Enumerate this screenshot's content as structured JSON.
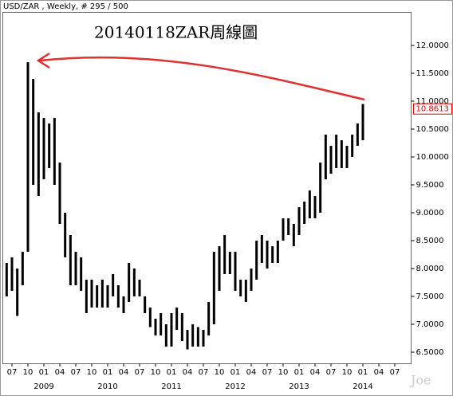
{
  "chart_data": {
    "type": "ohlc",
    "title": "USD/ZAR , Weekly, # 295 / 500",
    "annotation": "20140118ZAR周線圖",
    "watermark": "Joe",
    "color": "#000000",
    "last_price": 10.8613,
    "last_price_color": "#e00000",
    "x": [
      "2008-06",
      "2008-07",
      "2008-08",
      "2008-09",
      "2008-10",
      "2008-11",
      "2008-12",
      "2009-01",
      "2009-02",
      "2009-03",
      "2009-04",
      "2009-05",
      "2009-06",
      "2009-07",
      "2009-08",
      "2009-09",
      "2009-10",
      "2009-11",
      "2009-12",
      "2010-01",
      "2010-02",
      "2010-03",
      "2010-04",
      "2010-05",
      "2010-06",
      "2010-07",
      "2010-08",
      "2010-09",
      "2010-10",
      "2010-11",
      "2010-12",
      "2011-01",
      "2011-02",
      "2011-03",
      "2011-04",
      "2011-05",
      "2011-06",
      "2011-07",
      "2011-08",
      "2011-09",
      "2011-10",
      "2011-11",
      "2011-12",
      "2012-01",
      "2012-02",
      "2012-03",
      "2012-04",
      "2012-05",
      "2012-06",
      "2012-07",
      "2012-08",
      "2012-09",
      "2012-10",
      "2012-11",
      "2012-12",
      "2013-01",
      "2013-02",
      "2013-03",
      "2013-04",
      "2013-05",
      "2013-06",
      "2013-07",
      "2013-08",
      "2013-09",
      "2013-10",
      "2013-11",
      "2013-12",
      "2014-01"
    ],
    "high": [
      8.1,
      8.2,
      8.0,
      8.3,
      11.7,
      11.4,
      10.8,
      10.7,
      10.6,
      10.7,
      9.9,
      9.0,
      8.6,
      8.3,
      8.2,
      7.8,
      7.8,
      7.7,
      7.8,
      7.7,
      7.9,
      7.7,
      7.5,
      8.1,
      8.0,
      7.8,
      7.5,
      7.3,
      7.1,
      7.2,
      7.0,
      7.2,
      7.3,
      7.2,
      6.9,
      7.0,
      6.95,
      6.9,
      7.4,
      8.3,
      8.4,
      8.6,
      8.3,
      8.3,
      7.8,
      7.8,
      8.0,
      8.5,
      8.6,
      8.5,
      8.4,
      8.5,
      8.9,
      8.9,
      8.8,
      9.1,
      9.2,
      9.4,
      9.3,
      9.9,
      10.4,
      10.2,
      10.4,
      10.3,
      10.2,
      10.4,
      10.6,
      10.95
    ],
    "low": [
      7.5,
      7.6,
      7.15,
      7.7,
      8.3,
      9.5,
      9.3,
      9.6,
      9.8,
      9.5,
      8.8,
      8.2,
      7.7,
      7.7,
      7.6,
      7.2,
      7.3,
      7.3,
      7.3,
      7.3,
      7.5,
      7.3,
      7.2,
      7.4,
      7.5,
      7.5,
      7.2,
      6.95,
      6.8,
      6.8,
      6.6,
      6.6,
      6.9,
      6.7,
      6.55,
      6.6,
      6.6,
      6.6,
      6.8,
      7.0,
      7.6,
      7.9,
      7.9,
      7.6,
      7.5,
      7.4,
      7.6,
      7.8,
      8.1,
      8.0,
      8.1,
      8.1,
      8.5,
      8.6,
      8.4,
      8.6,
      8.8,
      8.9,
      8.9,
      9.0,
      9.6,
      9.7,
      9.8,
      9.8,
      9.8,
      10.0,
      10.2,
      10.3
    ],
    "ylim": [
      6.3,
      12.55
    ],
    "yticks": [
      {
        "value": 12,
        "label": "12.0000"
      },
      {
        "value": 11.5,
        "label": "11.5000"
      },
      {
        "value": 11,
        "label": "11.0000"
      },
      {
        "value": 10.5,
        "label": "10.5000"
      },
      {
        "value": 10,
        "label": "10.0000"
      },
      {
        "value": 9.5,
        "label": "9.5000"
      },
      {
        "value": 9,
        "label": "9.0000"
      },
      {
        "value": 8.5,
        "label": "8.5000"
      },
      {
        "value": 8,
        "label": "8.0000"
      },
      {
        "value": 7.5,
        "label": "7.5000"
      },
      {
        "value": 7,
        "label": "7.0000"
      },
      {
        "value": 6.5,
        "label": "6.5000"
      }
    ],
    "xticks": [
      {
        "value": "2008-07",
        "label": "07"
      },
      {
        "value": "2008-10",
        "label": "10"
      },
      {
        "value": "2009-01",
        "label": "01"
      },
      {
        "value": "2009-04",
        "label": "04"
      },
      {
        "value": "2009-07",
        "label": "07"
      },
      {
        "value": "2009-10",
        "label": "10"
      },
      {
        "value": "2010-01",
        "label": "01"
      },
      {
        "value": "2010-04",
        "label": "04"
      },
      {
        "value": "2010-07",
        "label": "07"
      },
      {
        "value": "2010-10",
        "label": "10"
      },
      {
        "value": "2011-01",
        "label": "01"
      },
      {
        "value": "2011-04",
        "label": "04"
      },
      {
        "value": "2011-07",
        "label": "07"
      },
      {
        "value": "2011-10",
        "label": "10"
      },
      {
        "value": "2012-01",
        "label": "01"
      },
      {
        "value": "2012-04",
        "label": "04"
      },
      {
        "value": "2012-07",
        "label": "07"
      },
      {
        "value": "2012-10",
        "label": "10"
      },
      {
        "value": "2013-01",
        "label": "01"
      },
      {
        "value": "2013-04",
        "label": "04"
      },
      {
        "value": "2013-07",
        "label": "07"
      },
      {
        "value": "2013-10",
        "label": "10"
      },
      {
        "value": "2014-01",
        "label": "01"
      },
      {
        "value": "2014-04",
        "label": "04"
      },
      {
        "value": "2014-07",
        "label": "07"
      }
    ],
    "year_labels": [
      {
        "value": "2009-01",
        "label": "2009"
      },
      {
        "value": "2010-01",
        "label": "2010"
      },
      {
        "value": "2011-01",
        "label": "2011"
      },
      {
        "value": "2012-01",
        "label": "2012"
      },
      {
        "value": "2013-01",
        "label": "2013"
      },
      {
        "value": "2014-01",
        "label": "2014"
      }
    ]
  }
}
